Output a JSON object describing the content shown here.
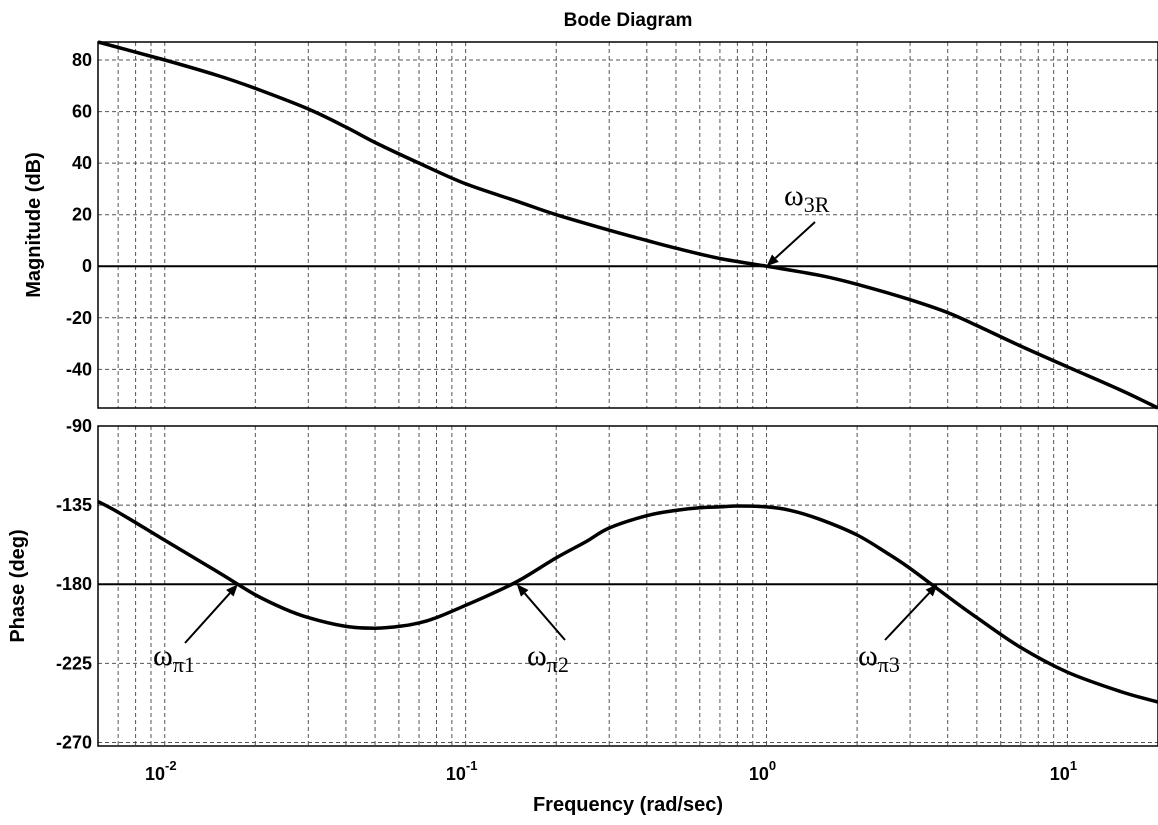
{
  "chart_data": {
    "title": "Bode Diagram",
    "xlabel": "Frequency  (rad/sec)",
    "x_scale": "log",
    "xlim": [
      0.006,
      20
    ],
    "x_ticks": [
      {
        "value": 0.01,
        "base": "10",
        "exp": "-2"
      },
      {
        "value": 0.1,
        "base": "10",
        "exp": "-1"
      },
      {
        "value": 1,
        "base": "10",
        "exp": "0"
      },
      {
        "value": 10,
        "base": "10",
        "exp": "1"
      }
    ],
    "grid": true,
    "magnitude": {
      "type": "line",
      "ylabel": "Magnitude (dB)",
      "ylim": [
        -55,
        87
      ],
      "y_ticks": [
        80,
        60,
        40,
        20,
        0,
        -20,
        -40
      ],
      "y_tick_labels": [
        "80",
        "60",
        "40",
        "20",
        "0",
        "-20",
        "-40"
      ],
      "reference_line": 0,
      "x": [
        0.006,
        0.01,
        0.015,
        0.02,
        0.03,
        0.04,
        0.05,
        0.07,
        0.1,
        0.15,
        0.2,
        0.3,
        0.4,
        0.5,
        0.7,
        1,
        1.5,
        2,
        3,
        4,
        5,
        7,
        10,
        15,
        20
      ],
      "y": [
        87,
        80,
        74,
        69,
        61,
        54,
        48,
        40,
        32,
        25,
        20,
        14,
        10,
        7,
        3,
        0,
        -3.5,
        -7,
        -13,
        -18,
        -23,
        -31,
        -39,
        -48,
        -55
      ]
    },
    "phase": {
      "type": "line",
      "ylabel": "Phase (deg)",
      "ylim": [
        -272,
        -90
      ],
      "y_ticks": [
        -90,
        -135,
        -180,
        -225,
        -270
      ],
      "y_tick_labels": [
        "-90",
        "-135",
        "-180",
        "-225",
        "-270"
      ],
      "reference_line": -180,
      "x": [
        0.006,
        0.007,
        0.01,
        0.015,
        0.02,
        0.025,
        0.03,
        0.04,
        0.05,
        0.06,
        0.07,
        0.08,
        0.1,
        0.12,
        0.15,
        0.2,
        0.25,
        0.3,
        0.4,
        0.5,
        0.6,
        0.7,
        0.8,
        1,
        1.2,
        1.5,
        2,
        2.5,
        3,
        4,
        5,
        7,
        10,
        15,
        20
      ],
      "y": [
        -133,
        -139,
        -155,
        -173,
        -186,
        -194,
        -199,
        -204,
        -205,
        -204,
        -202,
        -199,
        -192,
        -186,
        -178,
        -165,
        -156,
        -148,
        -141,
        -138,
        -136.5,
        -136,
        -135.5,
        -136,
        -138,
        -143,
        -152,
        -162,
        -171,
        -187,
        -199,
        -216,
        -230,
        -241,
        -247
      ]
    },
    "annotations": [
      {
        "main": "ω",
        "sub": "3R",
        "x": 1.0,
        "y": 0,
        "panel": "magnitude"
      },
      {
        "main": "ω",
        "sub": "π1",
        "x": 0.0175,
        "y": -180,
        "panel": "phase"
      },
      {
        "main": "ω",
        "sub": "π2",
        "x": 0.148,
        "y": -180,
        "panel": "phase"
      },
      {
        "main": "ω",
        "sub": "π3",
        "x": 3.7,
        "y": -180,
        "panel": "phase"
      }
    ]
  }
}
